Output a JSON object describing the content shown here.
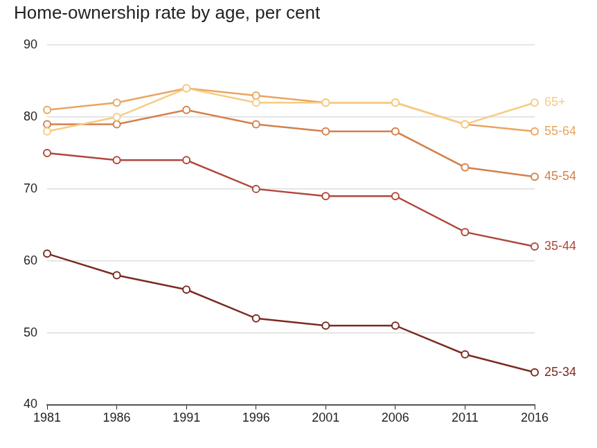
{
  "chart_data": {
    "type": "line",
    "title": "Home-ownership rate by age, per cent",
    "categories": [
      "1981",
      "1986",
      "1991",
      "1996",
      "2001",
      "2006",
      "2011",
      "2016"
    ],
    "series": [
      {
        "name": "65+",
        "color": "#f6cc82",
        "values": [
          78,
          80,
          84,
          82,
          82,
          82,
          79,
          82
        ]
      },
      {
        "name": "55-64",
        "color": "#e9a561",
        "values": [
          81,
          82,
          84,
          83,
          82,
          82,
          79,
          78
        ]
      },
      {
        "name": "45-54",
        "color": "#d3804c",
        "values": [
          79,
          79,
          81,
          79,
          78,
          78,
          73,
          71.7
        ]
      },
      {
        "name": "35-44",
        "color": "#b0473b",
        "values": [
          75,
          74,
          74,
          70,
          69,
          69,
          64,
          62
        ]
      },
      {
        "name": "25-34",
        "color": "#7b2b23",
        "values": [
          61,
          58,
          56,
          52,
          51,
          51,
          47,
          44.5
        ]
      }
    ],
    "ylim": [
      40,
      90
    ],
    "yticks": [
      40,
      50,
      60,
      70,
      80,
      90
    ],
    "grid": true,
    "marker": "circle"
  }
}
